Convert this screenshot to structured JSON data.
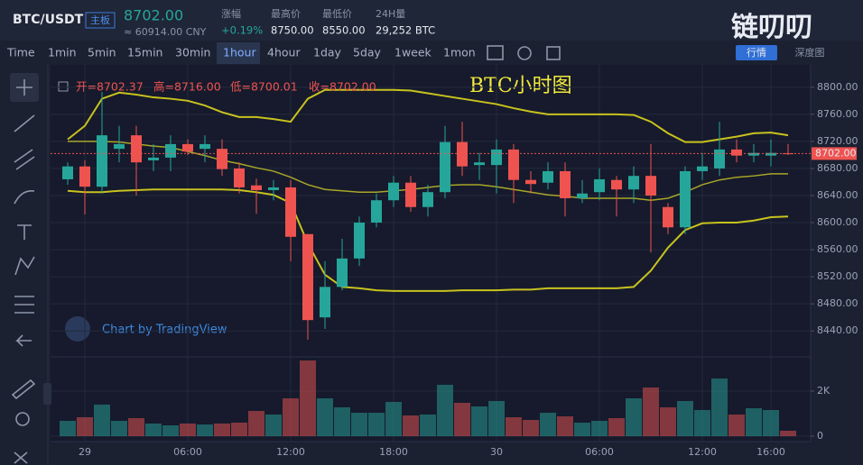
{
  "header": {
    "pair": "BTC/USDT",
    "board": "主板",
    "price": "8702.00",
    "cny": "≈ 60914.00 CNY",
    "stats": [
      {
        "label": "涨幅",
        "value": "+0.19%"
      },
      {
        "label": "最高价",
        "value": "8750.00"
      },
      {
        "label": "最低价",
        "value": "8550.00"
      },
      {
        "label": "24H量",
        "value": "29,252 BTC"
      }
    ],
    "logo": "链叨叨",
    "tabs": [
      "行情",
      "深度图"
    ]
  },
  "toolbar": {
    "intervals": [
      "Time",
      "1min",
      "5min",
      "15min",
      "30min",
      "1hour",
      "4hour",
      "1day",
      "5day",
      "1week",
      "1mon"
    ],
    "active": "1hour"
  },
  "chart_data": {
    "type": "candlestick",
    "title": "BTC小时图",
    "watermark": "Chart by TradingView",
    "ohlc_legend": [
      "开=8702.37",
      "高=8716.00",
      "低=8700.01",
      "收=8702.00"
    ],
    "categories": [
      null,
      "29",
      null,
      null,
      null,
      null,
      null,
      "06:00",
      null,
      null,
      null,
      null,
      null,
      "12:00",
      null,
      null,
      null,
      null,
      null,
      "18:00",
      null,
      null,
      null,
      null,
      null,
      "30",
      null,
      null,
      null,
      null,
      null,
      "06:00",
      null,
      null,
      null,
      null,
      null,
      "12:00",
      null,
      null,
      null,
      "16:00",
      null
    ],
    "open": [
      8664,
      8683,
      8653,
      8709,
      8729,
      8692,
      8696,
      8716,
      8709,
      8709,
      8680,
      8655,
      8648,
      8652,
      8583,
      8460,
      8505,
      8547,
      8600,
      8633,
      8659,
      8623,
      8645,
      8719,
      8685,
      8685,
      8708,
      8663,
      8659,
      8676,
      8636,
      8645,
      8663,
      8649,
      8669,
      8623,
      8593,
      8676,
      8680,
      8708,
      8699,
      8699,
      8702.37
    ],
    "high": [
      8689,
      8692,
      8793,
      8743,
      8743,
      8716,
      8729,
      8723,
      8729,
      8723,
      8689,
      8665,
      8663,
      8663,
      8583,
      8543,
      8576,
      8609,
      8643,
      8669,
      8669,
      8656,
      8743,
      8749,
      8703,
      8723,
      8716,
      8676,
      8689,
      8689,
      8663,
      8680,
      8669,
      8683,
      8716,
      8629,
      8683,
      8703,
      8749,
      8723,
      8716,
      8723,
      8716
    ],
    "low": [
      8656,
      8612,
      8643,
      8689,
      8640,
      8676,
      8676,
      8700,
      8689,
      8669,
      8643,
      8613,
      8633,
      8543,
      8427,
      8443,
      8500,
      8536,
      8593,
      8623,
      8616,
      8609,
      8636,
      8669,
      8663,
      8643,
      8629,
      8643,
      8649,
      8609,
      8629,
      8633,
      8609,
      8629,
      8556,
      8583,
      8583,
      8663,
      8669,
      8689,
      8689,
      8683,
      8700.01
    ],
    "close": [
      8683,
      8653,
      8729,
      8716,
      8689,
      8696,
      8716,
      8705,
      8716,
      8679,
      8652,
      8648,
      8652,
      8579,
      8456,
      8505,
      8547,
      8600,
      8633,
      8659,
      8623,
      8645,
      8719,
      8683,
      8689,
      8708,
      8663,
      8657,
      8676,
      8636,
      8643,
      8664,
      8649,
      8669,
      8640,
      8593,
      8676,
      8683,
      8708,
      8699,
      8703,
      8703,
      8702
    ],
    "volume": [
      680,
      840,
      1400,
      680,
      800,
      560,
      480,
      560,
      520,
      560,
      600,
      1120,
      960,
      1680,
      3360,
      1680,
      1280,
      1040,
      1040,
      1520,
      920,
      960,
      2280,
      1480,
      1320,
      1560,
      840,
      720,
      1040,
      880,
      600,
      680,
      800,
      1680,
      2160,
      1280,
      1560,
      1160,
      2560,
      960,
      1240,
      1160,
      240
    ],
    "indicators": [
      {
        "color": "#c8c21e",
        "values": [
          8723,
          8743,
          8783,
          8792,
          8789,
          8785,
          8783,
          8780,
          8773,
          8763,
          8756,
          8756,
          8753,
          8749,
          8783,
          8796,
          8796,
          8796,
          8796,
          8796,
          8795,
          8791,
          8787,
          8783,
          8779,
          8775,
          8769,
          8764,
          8760,
          8760,
          8760,
          8760,
          8760,
          8759,
          8749,
          8732,
          8719,
          8719,
          8723,
          8727,
          8732,
          8733,
          8729
        ]
      },
      {
        "color": "#a9a628",
        "values": [
          8720,
          8720,
          8720,
          8719,
          8716,
          8713,
          8711,
          8705,
          8699,
          8692,
          8687,
          8681,
          8676,
          8667,
          8656,
          8649,
          8647,
          8645,
          8645,
          8647,
          8649,
          8652,
          8655,
          8656,
          8656,
          8653,
          8649,
          8645,
          8641,
          8639,
          8636,
          8636,
          8636,
          8636,
          8633,
          8636,
          8645,
          8656,
          8663,
          8667,
          8669,
          8672,
          8672
        ]
      },
      {
        "color": "#c8c21e",
        "values": [
          8647,
          8645,
          8645,
          8647,
          8648,
          8649,
          8649,
          8649,
          8649,
          8649,
          8648,
          8645,
          8641,
          8629,
          8569,
          8523,
          8505,
          8503,
          8500,
          8499,
          8499,
          8499,
          8499,
          8500,
          8500,
          8500,
          8501,
          8501,
          8503,
          8503,
          8503,
          8503,
          8503,
          8505,
          8529,
          8563,
          8589,
          8599,
          8600,
          8600,
          8603,
          8608,
          8609
        ]
      }
    ],
    "up_color": "#26a69a",
    "down_color": "#ef5350",
    "last_price": {
      "value": 8702,
      "label": "8702.00"
    },
    "ylim": [
      8403,
      8833
    ],
    "yticks": [
      {
        "value": 8800,
        "label": "8800.00"
      },
      {
        "value": 8760,
        "label": "8760.00"
      },
      {
        "value": 8720,
        "label": "8720.00"
      },
      {
        "value": 8680,
        "label": "8680.00"
      },
      {
        "value": 8640,
        "label": "8640.00"
      },
      {
        "value": 8600,
        "label": "8600.00"
      },
      {
        "value": 8560,
        "label": "8560.00"
      },
      {
        "value": 8520,
        "label": "8520.00"
      },
      {
        "value": 8480,
        "label": "8480.00"
      },
      {
        "value": 8440,
        "label": "8440.00"
      }
    ],
    "volume_ylim": [
      0,
      3480
    ],
    "volume_yticks": [
      {
        "value": 2000,
        "label": "2K"
      },
      0
    ],
    "grid": true
  }
}
